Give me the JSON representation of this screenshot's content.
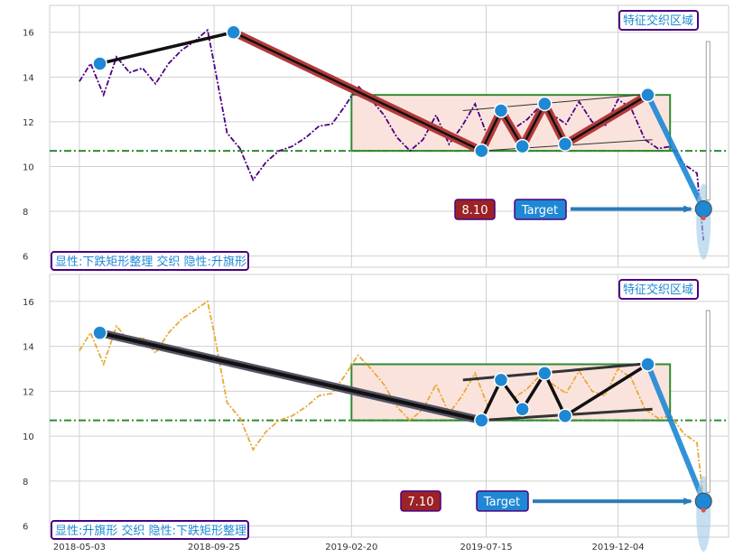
{
  "chart_data": [
    {
      "type": "line",
      "panel": "top",
      "series_color": "#4b0082",
      "series_style": "dash-dot",
      "series": [
        {
          "x": [
            "2018-05-03",
            "2018-05-15",
            "2018-05-29",
            "2018-06-12",
            "2018-06-26",
            "2018-07-10",
            "2018-07-24",
            "2018-08-07",
            "2018-08-21",
            "2018-09-04",
            "2018-09-18",
            "2018-09-25",
            "2018-10-09",
            "2018-10-23",
            "2018-11-06",
            "2018-11-20",
            "2018-12-04",
            "2018-12-18",
            "2019-01-02",
            "2019-01-16",
            "2019-01-30",
            "2019-02-13",
            "2019-02-27",
            "2019-03-13",
            "2019-03-27",
            "2019-04-10",
            "2019-04-24",
            "2019-05-08",
            "2019-05-22",
            "2019-06-05",
            "2019-06-19",
            "2019-07-03",
            "2019-07-17",
            "2019-07-31",
            "2019-08-14",
            "2019-08-28",
            "2019-09-11",
            "2019-09-25",
            "2019-10-09",
            "2019-10-23",
            "2019-11-06",
            "2019-11-20",
            "2019-12-04",
            "2019-12-18",
            "2020-01-02",
            "2020-01-16",
            "2020-01-30",
            "2020-02-13",
            "2020-02-27",
            "2020-03-05"
          ],
          "values": [
            13.8,
            14.6,
            13.2,
            14.9,
            14.2,
            14.4,
            13.7,
            14.6,
            15.2,
            15.6,
            16.1,
            14.6,
            11.5,
            10.8,
            9.4,
            10.2,
            10.7,
            10.9,
            11.3,
            11.8,
            11.9,
            12.7,
            13.6,
            13.0,
            12.3,
            11.3,
            10.7,
            11.2,
            12.3,
            11.0,
            11.8,
            12.8,
            11.3,
            12.6,
            11.7,
            12.1,
            12.7,
            12.3,
            11.9,
            12.9,
            12.0,
            11.8,
            13.0,
            12.6,
            11.2,
            10.8,
            10.9,
            10.1,
            9.7,
            6.7
          ]
        }
      ],
      "ylim": [
        5.5,
        17.2
      ],
      "yticks": [
        6,
        8,
        10,
        12,
        14,
        16
      ],
      "hline": {
        "y": 10.7,
        "color": "#2e8b2e",
        "style": "dash-dot"
      },
      "zone": {
        "x0": "2019-02-20",
        "x1": "2020-01-29",
        "y0": 10.7,
        "y1": 13.2,
        "fill": "#fbe3dd",
        "border": "#2e8b2e"
      },
      "pattern_points": [
        {
          "x": "2018-05-25",
          "y": 14.6
        },
        {
          "x": "2018-10-16",
          "y": 16.0
        },
        {
          "x": "2019-07-10",
          "y": 10.7
        },
        {
          "x": "2019-07-31",
          "y": 12.5
        },
        {
          "x": "2019-08-23",
          "y": 10.9
        },
        {
          "x": "2019-09-16",
          "y": 12.8
        },
        {
          "x": "2019-10-08",
          "y": 11.0
        },
        {
          "x": "2020-01-05",
          "y": 13.2
        },
        {
          "x": "2020-03-05",
          "y": 8.1
        }
      ],
      "target_value": "8.10",
      "target_label": "Target",
      "annotation": "显性:下跌矩形整理 交织 隐性:升旗形",
      "zone_label": "特征交织区域"
    },
    {
      "type": "line",
      "panel": "bottom",
      "series_color": "#e8a93a",
      "series_style": "dash-dot",
      "series": [
        {
          "x": [
            "2018-05-03",
            "2018-05-15",
            "2018-05-29",
            "2018-06-12",
            "2018-06-26",
            "2018-07-10",
            "2018-07-24",
            "2018-08-07",
            "2018-08-21",
            "2018-09-04",
            "2018-09-18",
            "2018-09-25",
            "2018-10-09",
            "2018-10-23",
            "2018-11-06",
            "2018-11-20",
            "2018-12-04",
            "2018-12-18",
            "2019-01-02",
            "2019-01-16",
            "2019-01-30",
            "2019-02-13",
            "2019-02-27",
            "2019-03-13",
            "2019-03-27",
            "2019-04-10",
            "2019-04-24",
            "2019-05-08",
            "2019-05-22",
            "2019-06-05",
            "2019-06-19",
            "2019-07-03",
            "2019-07-17",
            "2019-07-31",
            "2019-08-14",
            "2019-08-28",
            "2019-09-11",
            "2019-09-25",
            "2019-10-09",
            "2019-10-23",
            "2019-11-06",
            "2019-11-20",
            "2019-12-04",
            "2019-12-18",
            "2020-01-02",
            "2020-01-16",
            "2020-01-30",
            "2020-02-13",
            "2020-02-27",
            "2020-03-05"
          ],
          "values": [
            13.8,
            14.6,
            13.2,
            14.9,
            14.2,
            14.4,
            13.7,
            14.6,
            15.2,
            15.6,
            16.0,
            14.6,
            11.5,
            10.8,
            9.4,
            10.2,
            10.7,
            10.9,
            11.3,
            11.8,
            11.9,
            12.7,
            13.6,
            13.0,
            12.3,
            11.3,
            10.7,
            11.2,
            12.3,
            11.0,
            11.8,
            12.8,
            11.3,
            12.6,
            11.7,
            12.1,
            12.7,
            12.3,
            11.9,
            12.9,
            12.0,
            11.8,
            13.0,
            12.6,
            11.2,
            10.8,
            10.9,
            10.1,
            9.7,
            7.1
          ]
        }
      ],
      "ylim": [
        5.5,
        17.2
      ],
      "yticks": [
        6,
        8,
        10,
        12,
        14,
        16
      ],
      "hline": {
        "y": 10.7,
        "color": "#2e8b2e",
        "style": "dash-dot"
      },
      "zone": {
        "x0": "2019-02-20",
        "x1": "2020-01-29",
        "y0": 10.7,
        "y1": 13.2,
        "fill": "#fbe3dd",
        "border": "#2e8b2e"
      },
      "pattern_points": [
        {
          "x": "2018-05-25",
          "y": 14.6
        },
        {
          "x": "2019-07-10",
          "y": 10.7
        },
        {
          "x": "2019-07-31",
          "y": 12.5
        },
        {
          "x": "2019-08-23",
          "y": 11.2
        },
        {
          "x": "2019-09-16",
          "y": 12.8
        },
        {
          "x": "2019-10-08",
          "y": 10.9
        },
        {
          "x": "2020-01-05",
          "y": 13.2
        },
        {
          "x": "2020-03-05",
          "y": 7.1
        }
      ],
      "target_value": "7.10",
      "target_label": "Target",
      "annotation": "显性:升旗形 交织 隐性:下跌矩形整理",
      "zone_label": "特征交织区域"
    }
  ],
  "xaxis": {
    "range": [
      "2018-04-01",
      "2020-04-01"
    ],
    "ticks": [
      "2018-05-03",
      "2018-09-25",
      "2019-02-20",
      "2019-07-15",
      "2019-12-04"
    ]
  },
  "colors": {
    "pattern_red": "#b23a3a",
    "pattern_black": "#111111",
    "marker_blue": "#1e88d4",
    "label_box_red": "#9b2226",
    "label_box_blue": "#1e88d4",
    "annotation_border": "#4b0082",
    "annotation_text": "#1e88d4"
  }
}
